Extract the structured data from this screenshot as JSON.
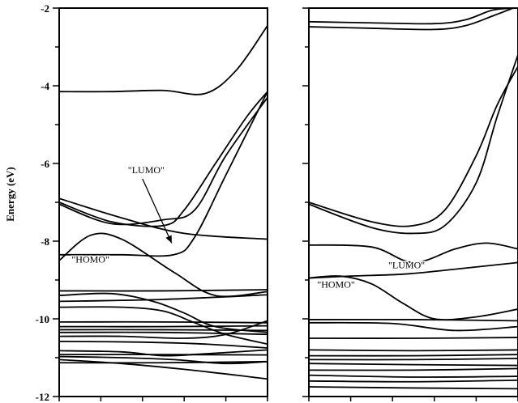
{
  "chart_data": [
    {
      "type": "line",
      "panel": "left",
      "ylabel": "Energy (eV)",
      "ylim": [
        -12,
        -2
      ],
      "xlim": [
        0,
        1
      ],
      "yticks": [
        -2,
        -4,
        -6,
        -8,
        -10,
        -12
      ],
      "annotations": [
        {
          "text": "\"LUMO\"",
          "at": [
            0.54,
            -8.05
          ],
          "ax": [
            0.33,
            -6.25
          ]
        },
        {
          "text": "\"HOMO\"",
          "at": [
            0.06,
            -8.55
          ]
        }
      ],
      "series": [
        {
          "x": [
            0,
            0.25,
            0.5,
            0.7,
            0.85,
            1
          ],
          "y": [
            -4.15,
            -4.15,
            -4.12,
            -4.2,
            -3.6,
            -2.45
          ]
        },
        {
          "x": [
            0,
            0.25,
            0.5,
            0.65,
            0.8,
            1
          ],
          "y": [
            -7.05,
            -7.55,
            -7.45,
            -7.2,
            -5.8,
            -4.3
          ]
        },
        {
          "x": [
            0,
            0.25,
            0.5,
            0.6,
            0.75,
            0.9,
            1
          ],
          "y": [
            -7.0,
            -7.5,
            -7.6,
            -7.2,
            -6.0,
            -4.8,
            -4.15
          ]
        },
        {
          "x": [
            0,
            0.3,
            0.6,
            1
          ],
          "y": [
            -6.9,
            -7.4,
            -7.8,
            -7.95
          ]
        },
        {
          "x": [
            0,
            0.15,
            0.3,
            0.55,
            0.75,
            1
          ],
          "y": [
            -8.5,
            -7.85,
            -7.95,
            -8.8,
            -9.4,
            -9.3
          ]
        },
        {
          "x": [
            0,
            0.3,
            0.55,
            0.65,
            0.8,
            1
          ],
          "y": [
            -8.35,
            -8.35,
            -8.35,
            -7.9,
            -6.3,
            -4.15
          ]
        },
        {
          "x": [
            0,
            0.5,
            1
          ],
          "y": [
            -9.28,
            -9.28,
            -9.25
          ]
        },
        {
          "x": [
            0,
            0.25,
            0.45,
            0.6,
            0.75,
            1
          ],
          "y": [
            -9.4,
            -9.35,
            -9.55,
            -9.85,
            -10.2,
            -10.35
          ]
        },
        {
          "x": [
            0,
            0.5,
            1
          ],
          "y": [
            -9.55,
            -9.5,
            -9.38
          ]
        },
        {
          "x": [
            0,
            0.3,
            0.5,
            0.65,
            0.8,
            1
          ],
          "y": [
            -9.7,
            -9.7,
            -9.8,
            -10.1,
            -10.4,
            -10.65
          ]
        },
        {
          "x": [
            0,
            0.5,
            1
          ],
          "y": [
            -10.08,
            -10.08,
            -10.1
          ]
        },
        {
          "x": [
            0,
            0.5,
            1
          ],
          "y": [
            -10.2,
            -10.2,
            -10.18
          ]
        },
        {
          "x": [
            0,
            0.5,
            1
          ],
          "y": [
            -10.28,
            -10.28,
            -10.3
          ]
        },
        {
          "x": [
            0,
            0.5,
            1
          ],
          "y": [
            -10.35,
            -10.35,
            -10.4
          ]
        },
        {
          "x": [
            0,
            0.3,
            0.6,
            0.8,
            1
          ],
          "y": [
            -10.45,
            -10.45,
            -10.5,
            -10.4,
            -10.05
          ]
        },
        {
          "x": [
            0,
            0.4,
            0.7,
            1
          ],
          "y": [
            -10.58,
            -10.6,
            -10.65,
            -10.75
          ]
        },
        {
          "x": [
            0,
            0.3,
            0.5,
            0.7,
            1
          ],
          "y": [
            -10.82,
            -10.85,
            -10.95,
            -10.9,
            -10.8
          ]
        },
        {
          "x": [
            0,
            0.5,
            1
          ],
          "y": [
            -10.92,
            -10.92,
            -10.93
          ]
        },
        {
          "x": [
            0,
            0.3,
            0.55,
            0.8,
            1
          ],
          "y": [
            -10.97,
            -11.0,
            -11.05,
            -11.15,
            -11.1
          ]
        },
        {
          "x": [
            0,
            0.5,
            1
          ],
          "y": [
            -11.13,
            -11.13,
            -11.1
          ]
        },
        {
          "x": [
            0,
            0.3,
            0.6,
            0.85,
            1
          ],
          "y": [
            -11.05,
            -11.15,
            -11.3,
            -11.45,
            -11.55
          ]
        }
      ]
    },
    {
      "type": "line",
      "panel": "right",
      "ylim": [
        -12,
        -2
      ],
      "xlim": [
        0,
        1
      ],
      "annotations": [
        {
          "text": "\"LUMO\"",
          "at": [
            0.38,
            -8.7
          ]
        },
        {
          "text": "\"HOMO\"",
          "at": [
            0.04,
            -9.2
          ]
        }
      ],
      "series": [
        {
          "x": [
            0,
            0.3,
            0.6,
            0.75,
            0.9,
            1
          ],
          "y": [
            -2.0,
            -2.0,
            -2.0,
            -2.0,
            -2.0,
            -2.0
          ]
        },
        {
          "x": [
            0,
            0.3,
            0.6,
            0.75,
            0.88,
            1
          ],
          "y": [
            -2.35,
            -2.38,
            -2.4,
            -2.3,
            -2.05,
            -2.0
          ]
        },
        {
          "x": [
            0,
            0.3,
            0.6,
            0.75,
            0.88,
            1
          ],
          "y": [
            -2.48,
            -2.52,
            -2.55,
            -2.45,
            -2.2,
            -1.95
          ]
        },
        {
          "x": [
            0,
            0.3,
            0.5,
            0.65,
            0.8,
            0.9,
            1
          ],
          "y": [
            -7.0,
            -7.5,
            -7.6,
            -7.2,
            -5.8,
            -4.5,
            -3.5
          ]
        },
        {
          "x": [
            0,
            0.3,
            0.5,
            0.65,
            0.8,
            0.9,
            1
          ],
          "y": [
            -7.05,
            -7.65,
            -7.8,
            -7.6,
            -6.5,
            -4.8,
            -3.2
          ]
        },
        {
          "x": [
            0,
            0.3,
            0.5,
            0.7,
            0.85,
            1
          ],
          "y": [
            -8.1,
            -8.15,
            -8.55,
            -8.2,
            -8.05,
            -8.2
          ]
        },
        {
          "x": [
            0,
            0.2,
            0.45,
            0.65,
            1
          ],
          "y": [
            -8.95,
            -8.9,
            -8.85,
            -8.75,
            -8.55
          ]
        },
        {
          "x": [
            0,
            0.15,
            0.3,
            0.45,
            0.6,
            0.8,
            1
          ],
          "y": [
            -8.95,
            -8.9,
            -9.1,
            -9.6,
            -10.0,
            -9.95,
            -9.75
          ]
        },
        {
          "x": [
            0,
            0.5,
            1
          ],
          "y": [
            -10.02,
            -10.02,
            -10.05
          ]
        },
        {
          "x": [
            0,
            0.4,
            0.7,
            1
          ],
          "y": [
            -10.1,
            -10.12,
            -10.3,
            -10.2
          ]
        },
        {
          "x": [
            0,
            0.5,
            1
          ],
          "y": [
            -10.5,
            -10.5,
            -10.48
          ]
        },
        {
          "x": [
            0,
            0.5,
            1
          ],
          "y": [
            -10.8,
            -10.82,
            -10.8
          ]
        },
        {
          "x": [
            0,
            0.5,
            1
          ],
          "y": [
            -10.95,
            -10.95,
            -10.92
          ]
        },
        {
          "x": [
            0,
            0.5,
            1
          ],
          "y": [
            -11.05,
            -11.05,
            -11.02
          ]
        },
        {
          "x": [
            0,
            0.5,
            1
          ],
          "y": [
            -11.15,
            -11.18,
            -11.2
          ]
        },
        {
          "x": [
            0,
            0.5,
            1
          ],
          "y": [
            -11.32,
            -11.32,
            -11.28
          ]
        },
        {
          "x": [
            0,
            0.5,
            1
          ],
          "y": [
            -11.45,
            -11.5,
            -11.48
          ]
        },
        {
          "x": [
            0,
            0.5,
            1
          ],
          "y": [
            -11.6,
            -11.62,
            -11.58
          ]
        },
        {
          "x": [
            0,
            0.5,
            1
          ],
          "y": [
            -11.75,
            -11.78,
            -11.8
          ]
        }
      ]
    }
  ]
}
